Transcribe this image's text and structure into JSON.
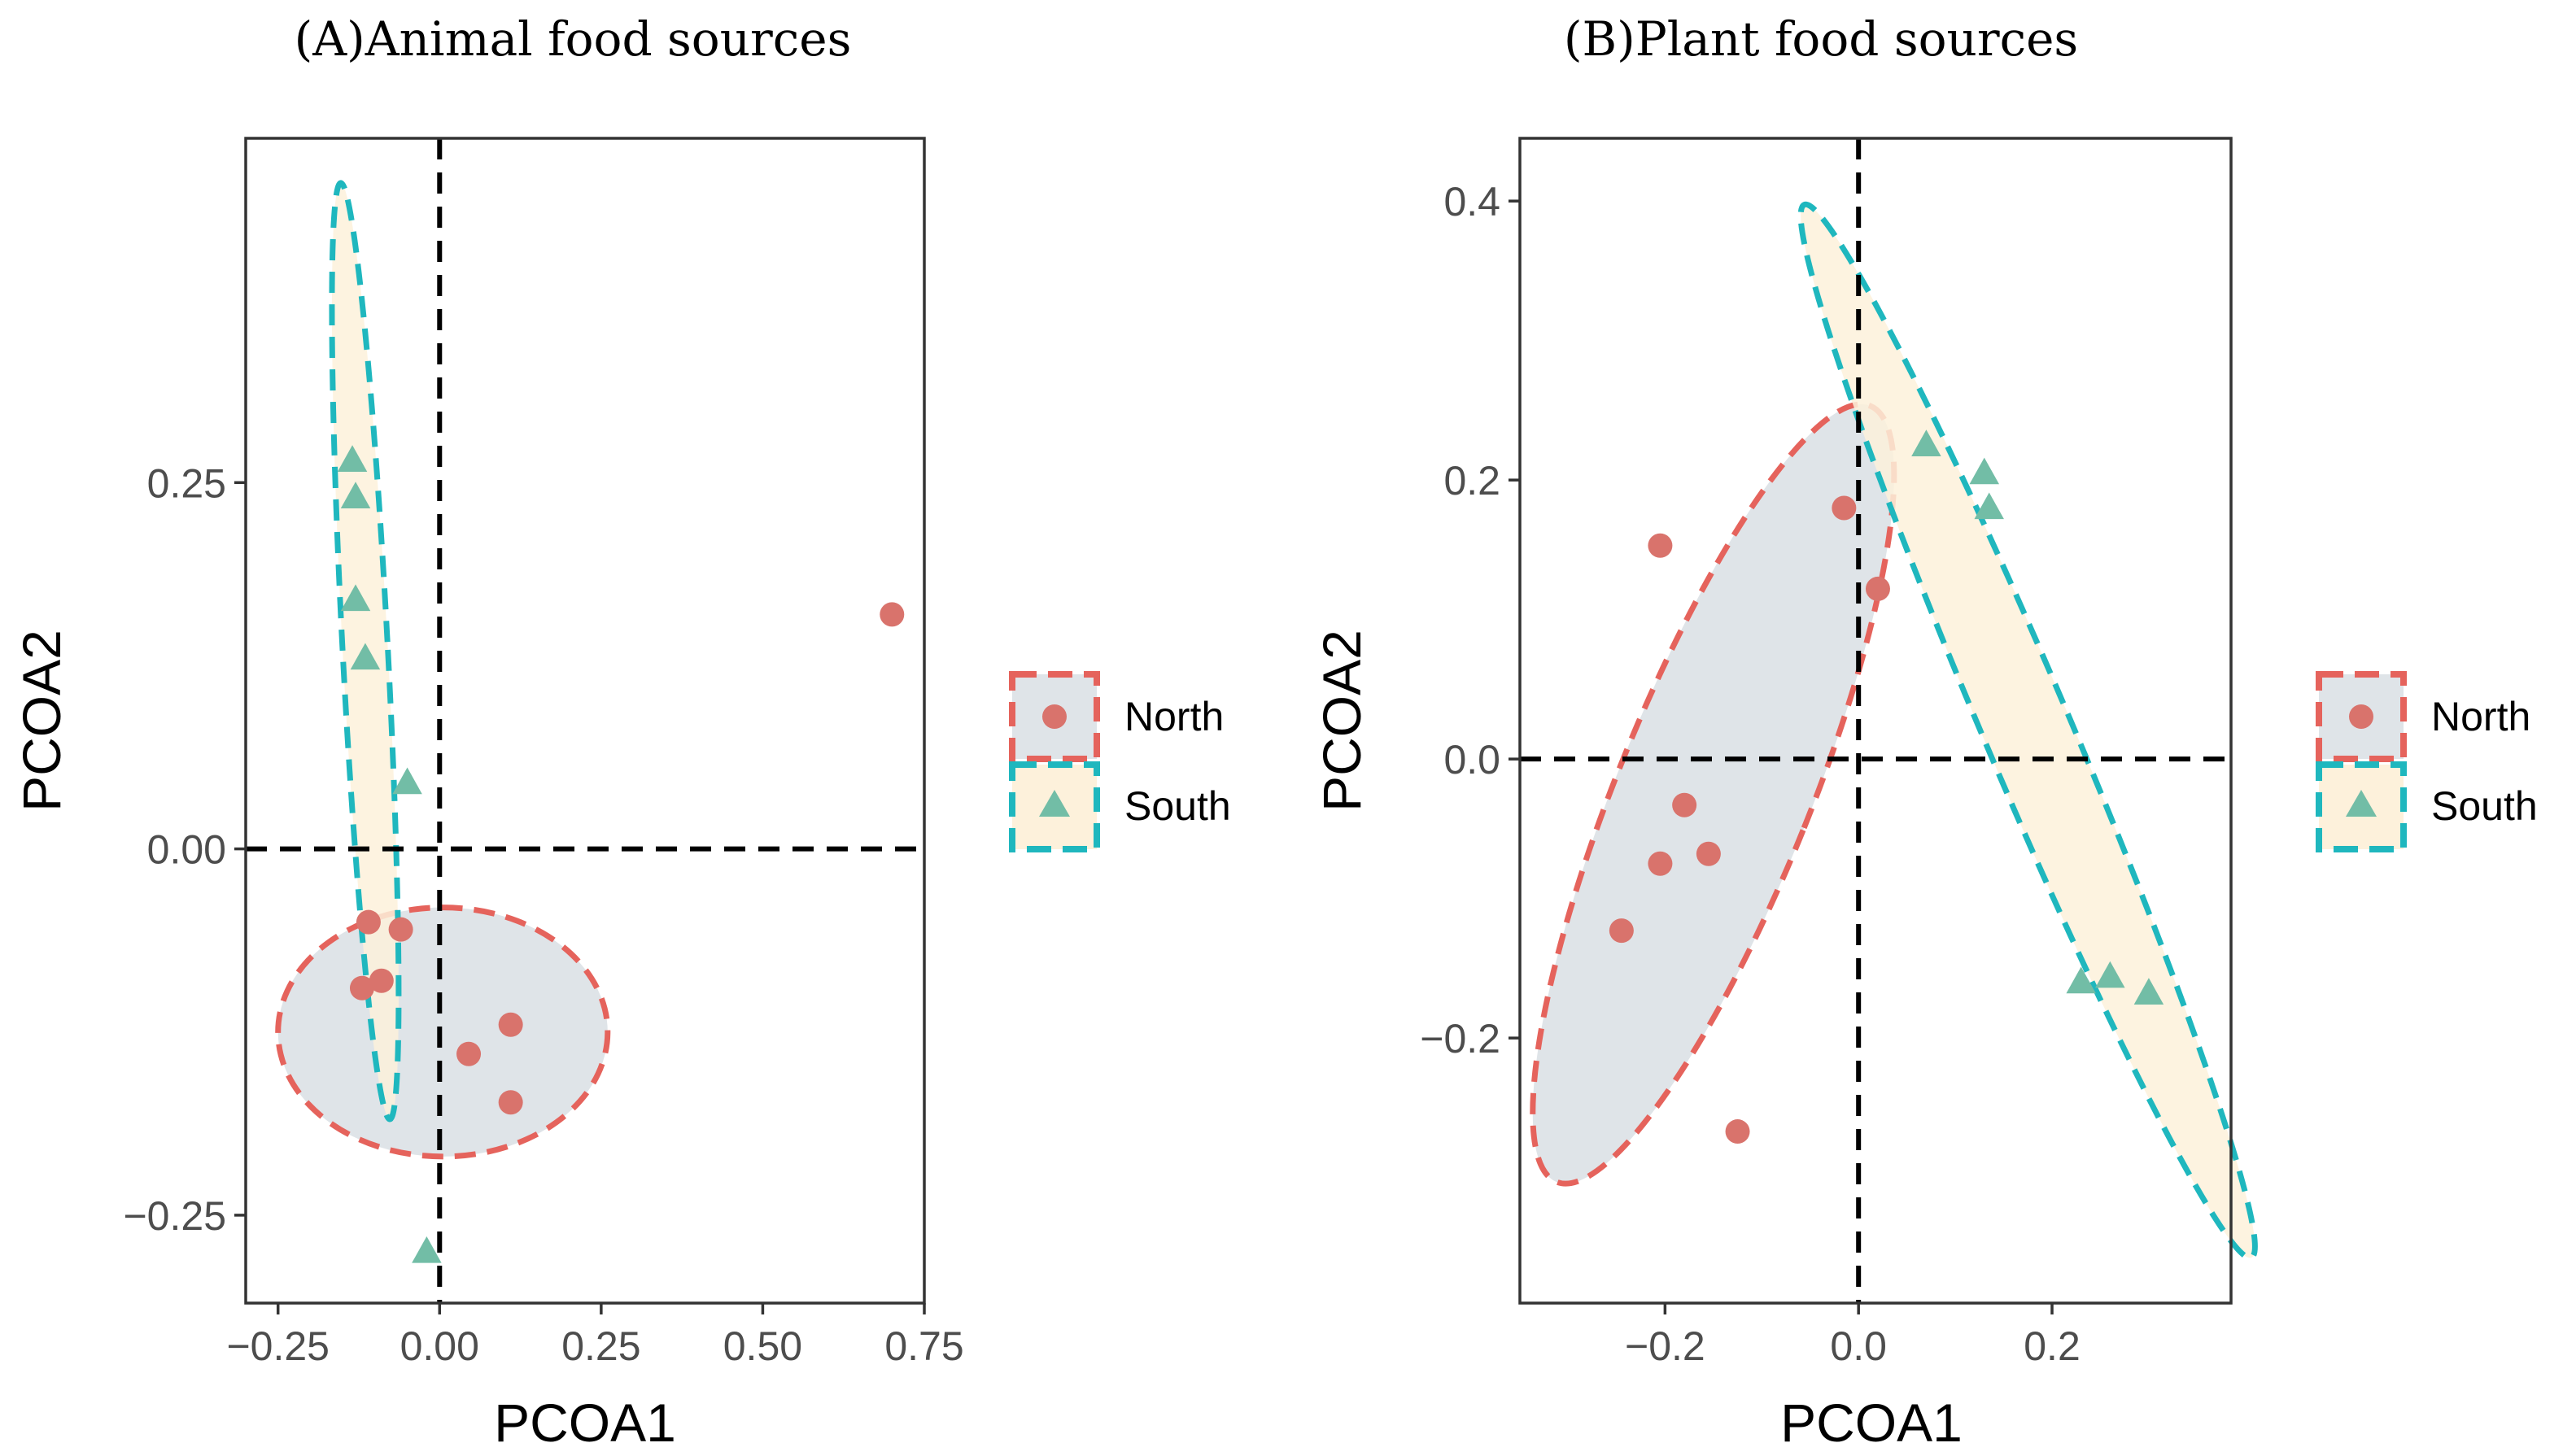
{
  "colors": {
    "north": "#e5635c",
    "north_point": "#d9736c",
    "north_fill": "#dfe4e8",
    "south": "#1fb7be",
    "south_point": "#72bda6",
    "south_fill": "#fdf1db",
    "zero_line": "#000000",
    "frame": "#333333"
  },
  "chart_data": [
    {
      "type": "scatter",
      "title": "(A)Animal food sources",
      "xlabel": "PCOA1",
      "ylabel": "PCOA2",
      "xlim": [
        -0.3,
        0.75
      ],
      "ylim": [
        -0.31,
        0.485
      ],
      "x_ticks": [
        -0.25,
        0,
        0.25,
        0.5,
        0.75
      ],
      "x_tick_labels": [
        "−0.25",
        "0.00",
        "0.25",
        "0.50",
        "0.75"
      ],
      "y_ticks": [
        -0.25,
        0,
        0.25
      ],
      "y_tick_labels": [
        "−0.25",
        "0.00",
        "0.25"
      ],
      "legend": [
        "North",
        "South"
      ],
      "series": [
        {
          "name": "North",
          "points": [
            [
              0.7,
              0.16
            ],
            [
              -0.11,
              -0.05
            ],
            [
              -0.06,
              -0.055
            ],
            [
              -0.12,
              -0.095
            ],
            [
              -0.09,
              -0.09
            ],
            [
              0.11,
              -0.12
            ],
            [
              0.045,
              -0.14
            ],
            [
              0.11,
              -0.173
            ]
          ],
          "ellipse": {
            "center": [
              0.005,
              -0.125
            ],
            "rx": 0.255,
            "ry": 0.085,
            "angle_deg": 0
          }
        },
        {
          "name": "South",
          "points": [
            [
              -0.135,
              0.265
            ],
            [
              -0.13,
              0.24
            ],
            [
              -0.13,
              0.17
            ],
            [
              -0.115,
              0.13
            ],
            [
              -0.05,
              0.045
            ],
            [
              -0.02,
              -0.275
            ]
          ],
          "ellipse": {
            "center": [
              -0.115,
              0.135
            ],
            "rx": 0.035,
            "ry": 0.32,
            "angle_deg": -3
          }
        }
      ]
    },
    {
      "type": "scatter",
      "title": "(B)Plant food sources",
      "xlabel": "PCOA1",
      "ylabel": "PCOA2",
      "xlim": [
        -0.35,
        0.385
      ],
      "ylim": [
        -0.39,
        0.445
      ],
      "x_ticks": [
        -0.2,
        0,
        0.2
      ],
      "x_tick_labels": [
        "−0.2",
        "0.0",
        "0.2"
      ],
      "y_ticks": [
        -0.2,
        0,
        0.2,
        0.4
      ],
      "y_tick_labels": [
        "−0.2",
        "0.0",
        "0.2",
        "0.4"
      ],
      "legend": [
        "North",
        "South"
      ],
      "series": [
        {
          "name": "North",
          "points": [
            [
              -0.205,
              0.153
            ],
            [
              -0.015,
              0.18
            ],
            [
              0.02,
              0.122
            ],
            [
              -0.18,
              -0.033
            ],
            [
              -0.205,
              -0.075
            ],
            [
              -0.155,
              -0.068
            ],
            [
              -0.245,
              -0.123
            ],
            [
              -0.125,
              -0.267
            ]
          ],
          "ellipse": {
            "center": [
              -0.15,
              -0.025
            ],
            "rx": 0.1,
            "ry": 0.3,
            "angle_deg": 22
          }
        },
        {
          "name": "South",
          "points": [
            [
              0.07,
              0.225
            ],
            [
              0.13,
              0.205
            ],
            [
              0.135,
              0.18
            ],
            [
              0.23,
              -0.16
            ],
            [
              0.26,
              -0.156
            ],
            [
              0.3,
              -0.168
            ]
          ],
          "ellipse": {
            "center": [
              0.175,
              0.02
            ],
            "rx": 0.045,
            "ry": 0.41,
            "angle_deg": -23
          }
        }
      ]
    }
  ]
}
